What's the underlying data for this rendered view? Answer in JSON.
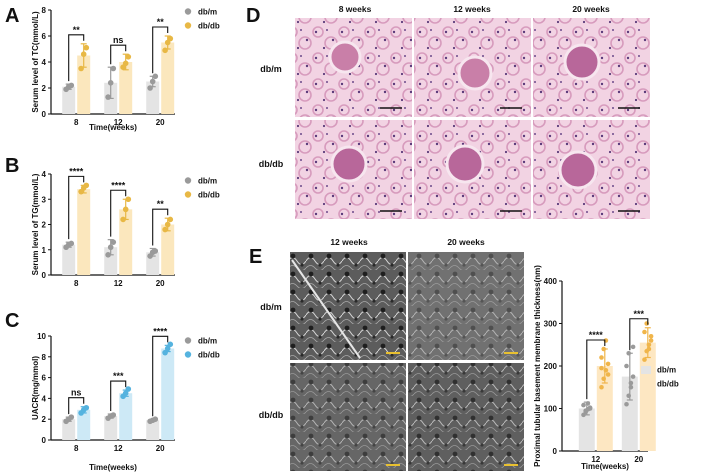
{
  "panels": {
    "A": "A",
    "B": "B",
    "C": "C",
    "D": "D",
    "E": "E"
  },
  "colors": {
    "dbm_bar": "#e4e4e4",
    "dbm_dot": "#9a9a9a",
    "tc_bar": "#fbe7bd",
    "tc_dot": "#e8b845",
    "tg_bar": "#fbe7bd",
    "tg_dot": "#e8b845",
    "uacr_bar": "#cde9f6",
    "uacr_dot": "#55b3df",
    "thick_bar": "#fde7c2",
    "thick_dot": "#f0b54a",
    "he_tissue": "#e9b9d2",
    "em_tissue": "#6a6a6a"
  },
  "histology": {
    "columns": [
      "8 weeks",
      "12 weeks",
      "20 weeks"
    ],
    "rows": [
      "db/m",
      "db/db"
    ]
  },
  "em": {
    "columns": [
      "12 weeks",
      "20 weeks"
    ],
    "rows": [
      "db/m",
      "db/db"
    ]
  },
  "chart_data": [
    {
      "id": "A",
      "type": "bar",
      "ylabel": "Serum level of TC(mmol/L)",
      "xlabel": "Time(weeks)",
      "categories": [
        "8",
        "12",
        "20"
      ],
      "ylim": [
        0,
        8
      ],
      "yticks": [
        "0",
        "2",
        "4",
        "6",
        "8"
      ],
      "legend": [
        "db/m",
        "db/db"
      ],
      "series": [
        {
          "name": "db/m",
          "values": [
            2.1,
            2.4,
            2.5
          ],
          "err": [
            0.2,
            1.2,
            0.4
          ],
          "points": [
            [
              1.9,
              2.1,
              2.2
            ],
            [
              1.3,
              2.4,
              3.5
            ],
            [
              2.0,
              2.5,
              2.9
            ]
          ]
        },
        {
          "name": "db/db",
          "values": [
            4.5,
            4.0,
            5.5
          ],
          "err": [
            0.9,
            0.6,
            0.5
          ],
          "points": [
            [
              3.5,
              4.6,
              5.1
            ],
            [
              3.6,
              3.9,
              4.4
            ],
            [
              4.9,
              5.5,
              5.8
            ]
          ]
        }
      ],
      "significance": [
        "**",
        "ns",
        "**"
      ]
    },
    {
      "id": "B",
      "type": "bar",
      "ylabel": "Serum level of TG(mmol/L)",
      "xlabel": "",
      "categories": [
        "8",
        "12",
        "20"
      ],
      "ylim": [
        0,
        4
      ],
      "yticks": [
        "0",
        "1",
        "2",
        "3",
        "4"
      ],
      "legend": [
        "db/m",
        "db/db"
      ],
      "series": [
        {
          "name": "db/m",
          "values": [
            1.2,
            1.1,
            0.9
          ],
          "err": [
            0.1,
            0.3,
            0.15
          ],
          "points": [
            [
              1.1,
              1.2,
              1.25
            ],
            [
              0.8,
              1.1,
              1.3
            ],
            [
              0.75,
              0.9,
              0.95
            ]
          ]
        },
        {
          "name": "db/db",
          "values": [
            3.4,
            2.6,
            2.0
          ],
          "err": [
            0.15,
            0.4,
            0.25
          ],
          "points": [
            [
              3.3,
              3.45,
              3.55
            ],
            [
              2.2,
              2.6,
              3.0
            ],
            [
              1.8,
              2.0,
              2.2
            ]
          ]
        }
      ],
      "significance": [
        "****",
        "****",
        "**"
      ]
    },
    {
      "id": "C",
      "type": "bar",
      "ylabel": "UACR(mg/mmol)",
      "xlabel": "Time(weeks)",
      "categories": [
        "8",
        "12",
        "20"
      ],
      "ylim": [
        0,
        10
      ],
      "yticks": [
        "0",
        "2",
        "4",
        "6",
        "8",
        "10"
      ],
      "legend": [
        "db/m",
        "db/db"
      ],
      "series": [
        {
          "name": "db/m",
          "values": [
            2.0,
            2.3,
            1.9
          ],
          "err": [
            0.2,
            0.2,
            0.1
          ],
          "points": [
            [
              1.8,
              2.0,
              2.2
            ],
            [
              2.1,
              2.3,
              2.4
            ],
            [
              1.8,
              1.9,
              2.0
            ]
          ]
        },
        {
          "name": "db/db",
          "values": [
            2.9,
            4.5,
            8.8
          ],
          "err": [
            0.3,
            0.3,
            0.3
          ],
          "points": [
            [
              2.6,
              2.9,
              3.1
            ],
            [
              4.2,
              4.5,
              4.9
            ],
            [
              8.4,
              8.8,
              9.2
            ]
          ]
        }
      ],
      "significance": [
        "ns",
        "***",
        "****"
      ]
    },
    {
      "id": "E-chart",
      "type": "bar",
      "ylabel": "Proximal tubular basement membrane thickness(nm)",
      "xlabel": "Time(weeks)",
      "categories": [
        "12",
        "20"
      ],
      "ylim": [
        0,
        400
      ],
      "yticks": [
        "0",
        "100",
        "200",
        "300",
        "400"
      ],
      "legend": [
        "db/m",
        "db/db"
      ],
      "series": [
        {
          "name": "db/m",
          "values": [
            100,
            175
          ],
          "err": [
            15,
            55
          ],
          "points": [
            [
              85,
              92,
              98,
              102,
              108,
              95,
              112,
              100
            ],
            [
              110,
              130,
              150,
              175,
              200,
              230,
              160,
              245
            ]
          ]
        },
        {
          "name": "db/db",
          "values": [
            200,
            255
          ],
          "err": [
            40,
            35
          ],
          "points": [
            [
              150,
              170,
              190,
              205,
              220,
              240,
              260,
              180,
              195
            ],
            [
              215,
              235,
              250,
              260,
              280,
              300,
              240,
              270
            ]
          ]
        }
      ],
      "significance": [
        "****",
        "***"
      ]
    }
  ]
}
